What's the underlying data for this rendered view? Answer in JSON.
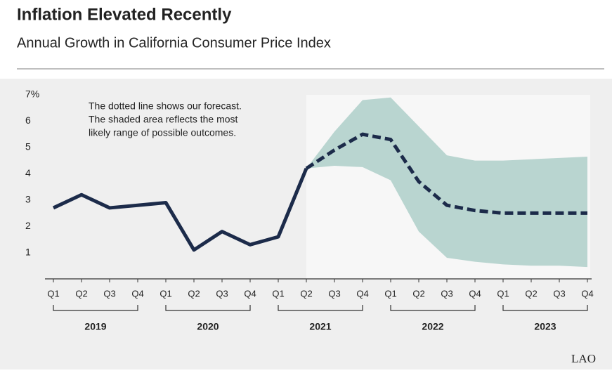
{
  "chart_data": {
    "type": "line",
    "title": "Inflation Elevated Recently",
    "subtitle": "Annual Growth in California Consumer Price Index",
    "annotation": [
      "The dotted line shows our forecast.",
      "The shaded area reflects the most",
      "likely range of possible outcomes."
    ],
    "categories": [
      "Q1",
      "Q2",
      "Q3",
      "Q4",
      "Q1",
      "Q2",
      "Q3",
      "Q4",
      "Q1",
      "Q2",
      "Q3",
      "Q4",
      "Q1",
      "Q2",
      "Q3",
      "Q4",
      "Q1",
      "Q2",
      "Q3",
      "Q4"
    ],
    "years": [
      "2019",
      "2020",
      "2021",
      "2022",
      "2023"
    ],
    "series": [
      {
        "color": "#1c2b4a",
        "dashed": false,
        "values": [
          2.7,
          3.2,
          2.7,
          2.8,
          2.9,
          1.1,
          1.8,
          1.3,
          1.6,
          4.2,
          null,
          null,
          null,
          null,
          null,
          null,
          null,
          null,
          null,
          null
        ]
      },
      {
        "color": "#1c2b4a",
        "dashed": true,
        "values": [
          null,
          null,
          null,
          null,
          null,
          null,
          null,
          null,
          null,
          4.2,
          4.9,
          5.5,
          5.3,
          3.7,
          2.8,
          2.6,
          2.5,
          2.5,
          2.5,
          2.5
        ]
      }
    ],
    "band": {
      "color": "#b9d5d0",
      "upper": [
        null,
        null,
        null,
        null,
        null,
        null,
        null,
        null,
        null,
        4.2,
        5.6,
        6.8,
        6.9,
        5.8,
        4.7,
        4.5,
        4.5,
        4.55,
        4.6,
        4.65
      ],
      "lower": [
        null,
        null,
        null,
        null,
        null,
        null,
        null,
        null,
        null,
        4.2,
        4.3,
        4.25,
        3.75,
        1.8,
        0.8,
        0.65,
        0.55,
        0.5,
        0.5,
        0.45
      ]
    },
    "ylim": [
      0,
      7
    ],
    "yticks": [
      1,
      2,
      3,
      4,
      5,
      6,
      {
        "value": 7,
        "label": "7%"
      }
    ],
    "source_logo": "LAO"
  }
}
